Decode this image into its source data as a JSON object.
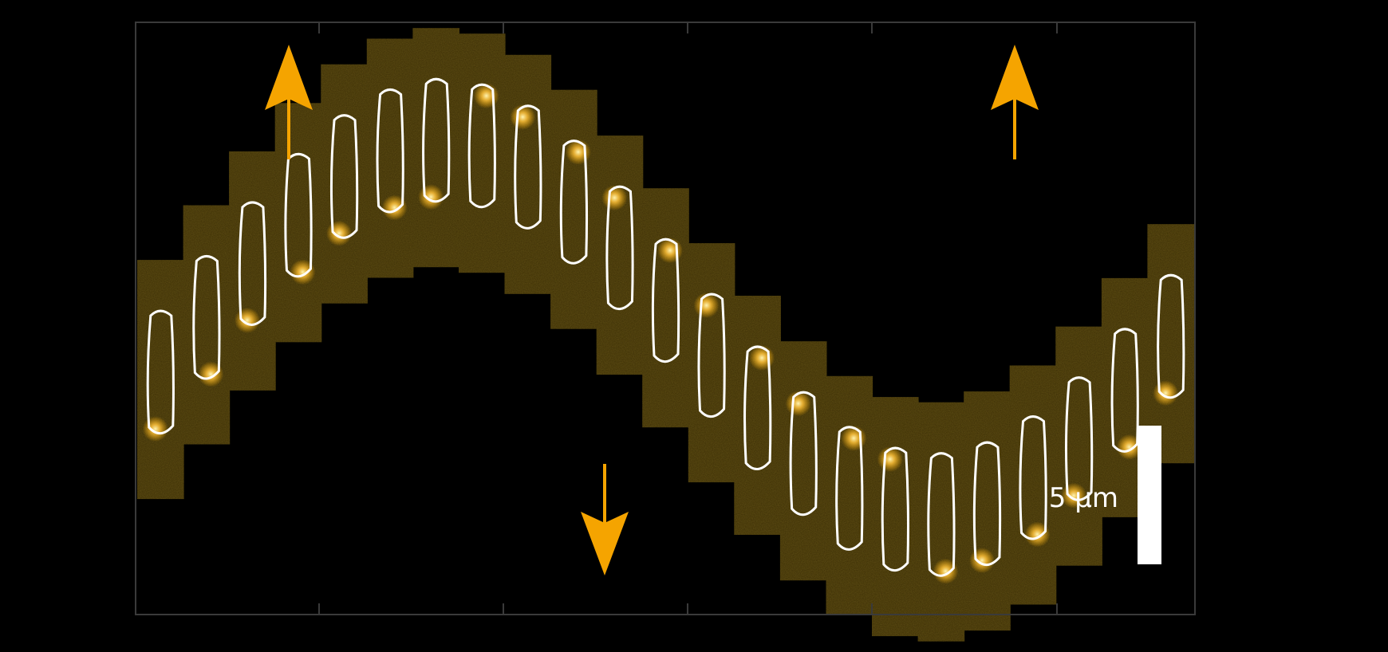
{
  "scale_bar": {
    "label": "5 µm",
    "color": "#ffffff"
  },
  "colors": {
    "background": "#000000",
    "frame": "#3a3a3a",
    "tile": "#3b2d05",
    "cell_outline": "#ffffff",
    "arrow": "#f5a400",
    "glow": "#ffc23a"
  },
  "arrows": [
    {
      "direction": "up"
    },
    {
      "direction": "down"
    },
    {
      "direction": "up"
    }
  ],
  "cell_count": 23
}
